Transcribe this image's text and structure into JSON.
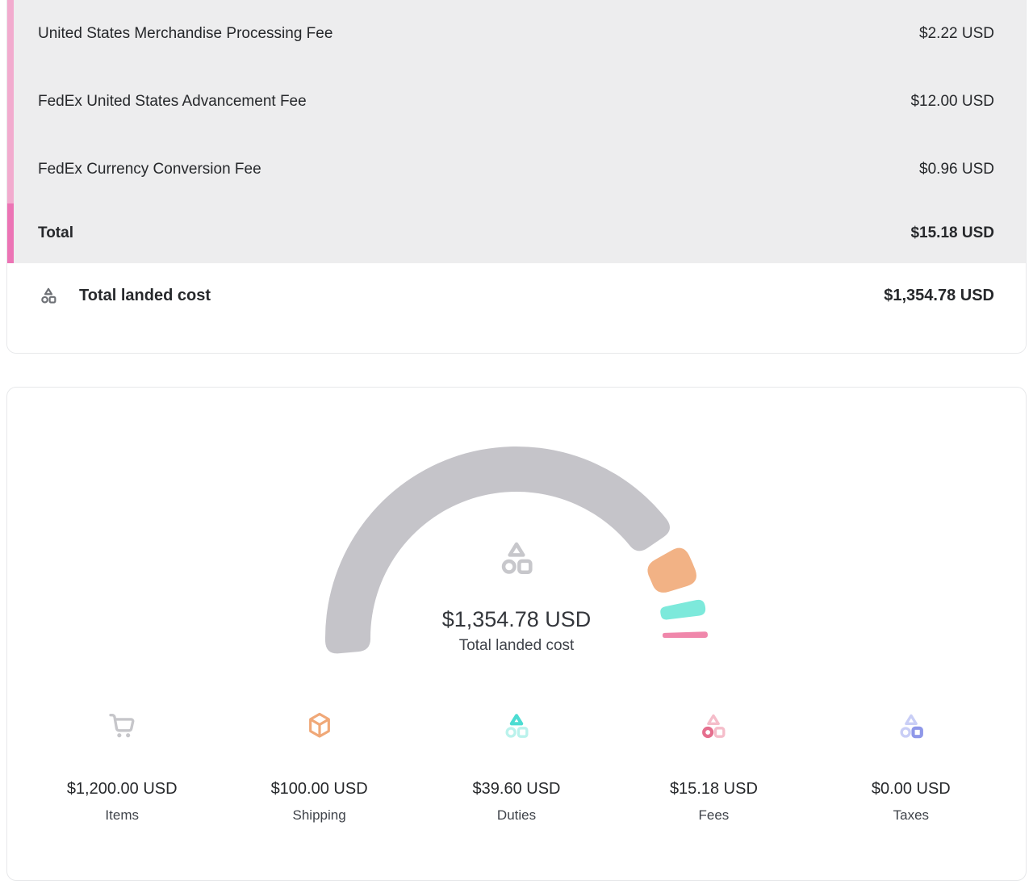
{
  "fees_card": {
    "rows": [
      {
        "label": "United States Merchandise Processing Fee",
        "amount": "$2.22 USD"
      },
      {
        "label": "FedEx United States Advancement Fee",
        "amount": "$12.00 USD"
      },
      {
        "label": "FedEx Currency Conversion Fee",
        "amount": "$0.96 USD"
      }
    ],
    "total": {
      "label": "Total",
      "amount": "$15.18 USD"
    },
    "landed": {
      "label": "Total landed cost",
      "amount": "$1,354.78 USD"
    },
    "accent_stripe_light": "#f2abce",
    "accent_stripe_dark": "#ec74b5",
    "table_background": "#ededee"
  },
  "chart_data": {
    "type": "gauge-donut",
    "center_value": "$1,354.78 USD",
    "center_label": "Total landed cost",
    "total": 1354.78,
    "start_angle_deg": 185,
    "end_angle_deg": 0,
    "pad_angle_deg": 5,
    "legend_position": "bottom",
    "segments": [
      {
        "name": "Items",
        "value": 1200.0,
        "display": "$1,200.00 USD",
        "color": "#c5c4c9",
        "icon": "cart-icon",
        "icon_color": "#c6c6ca"
      },
      {
        "name": "Shipping",
        "value": 100.0,
        "display": "$100.00 USD",
        "color": "#f2b285",
        "icon": "package-icon",
        "icon_color": "#f0a878"
      },
      {
        "name": "Duties",
        "value": 39.6,
        "display": "$39.60 USD",
        "color": "#7de9db",
        "icon": "shapes-icon",
        "highlight_shape": "triangle",
        "icon_color": "#4cdcd2",
        "icon_muted_color": "#baf2ec"
      },
      {
        "name": "Fees",
        "value": 15.18,
        "display": "$15.18 USD",
        "color": "#f087ab",
        "icon": "shapes-icon",
        "highlight_shape": "circle",
        "icon_color": "#e56f8e",
        "icon_muted_color": "#f5bdca"
      },
      {
        "name": "Taxes",
        "value": 0.0,
        "display": "$0.00 USD",
        "color": "#a9b0f0",
        "icon": "shapes-icon",
        "highlight_shape": "square",
        "icon_color": "#8f98e9",
        "icon_muted_color": "#c9cef6"
      }
    ],
    "center_icon_color": "#c7c7cb",
    "landed_row_icon_color": "#6d7075"
  }
}
